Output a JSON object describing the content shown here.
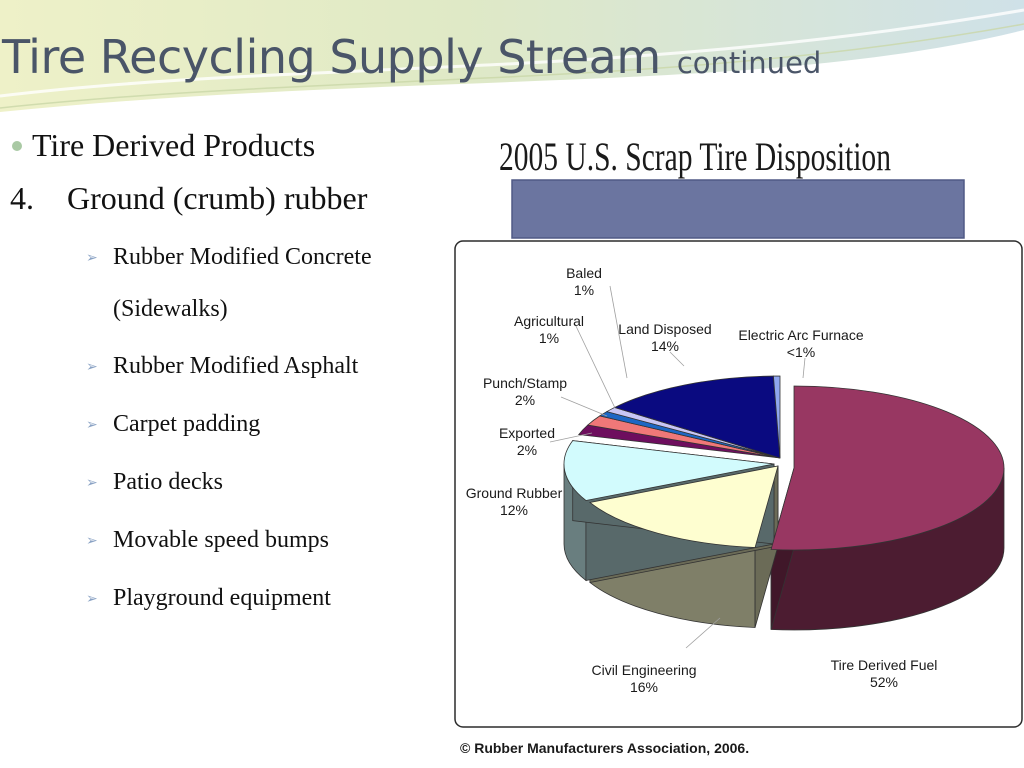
{
  "slide": {
    "title": "Tire Recycling Supply Stream",
    "title_suffix": "continued",
    "bullet_1": "Tire Derived Products",
    "item_number": "4.",
    "item_text": "Ground (crumb) rubber",
    "sub_items": [
      "Rubber Modified Concrete",
      "(Sidewalks)",
      "Rubber Modified Asphalt",
      "Carpet padding",
      "Patio decks",
      "Movable speed bumps",
      "Playground equipment"
    ]
  },
  "chart_data": {
    "type": "pie",
    "style": "3d-exploded",
    "title": "2005 U.S. Scrap Tire Disposition",
    "source": "© Rubber Manufacturers Association, 2006.",
    "slices": [
      {
        "label": "Tire Derived Fuel",
        "percent_label": "52%",
        "value": 52,
        "color": "#983762"
      },
      {
        "label": "Civil Engineering",
        "percent_label": "16%",
        "value": 16,
        "color": "#fefed0"
      },
      {
        "label": "Ground Rubber",
        "percent_label": "12%",
        "value": 12,
        "color": "#d2fbfd"
      },
      {
        "label": "Exported",
        "percent_label": "2%",
        "value": 2,
        "color": "#6e0e5e"
      },
      {
        "label": "Punch/Stamp",
        "percent_label": "2%",
        "value": 2,
        "color": "#f07878"
      },
      {
        "label": "Agricultural",
        "percent_label": "1%",
        "value": 1,
        "color": "#1d67c4"
      },
      {
        "label": "Baled",
        "percent_label": "1%",
        "value": 1,
        "color": "#c8c6f5"
      },
      {
        "label": "Land Disposed",
        "percent_label": "14%",
        "value": 14,
        "color": "#0a0a80"
      },
      {
        "label": "Electric Arc Furnace",
        "percent_label": "<1%",
        "value": 0.5,
        "color": "#8fa6ef"
      }
    ]
  }
}
